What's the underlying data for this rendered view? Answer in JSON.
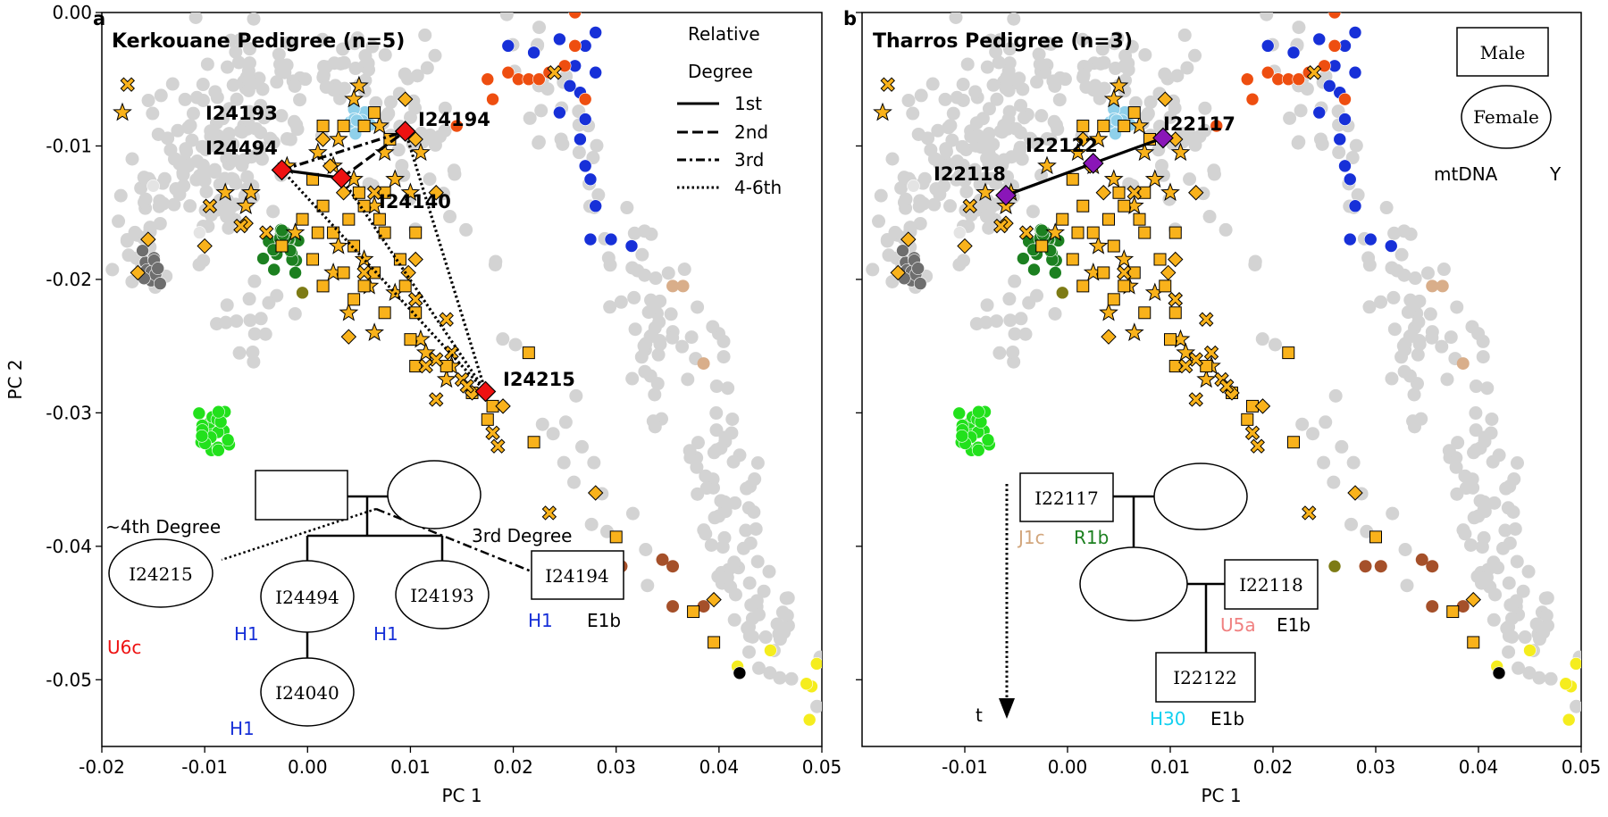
{
  "colors": {
    "background_points": "#d3d3d3",
    "marker_fill": "#f9b21b",
    "kerkouane_individuals": "#ee1111",
    "tharros_individuals": "#8a16b8",
    "blue": "#1730d8",
    "orange_red": "#ee4e10",
    "green_dark": "#1c8020",
    "green_bright": "#22e11c",
    "gray_dark": "#6e6e6e",
    "sky_blue": "#8fd0ea",
    "olive": "#7d7b15",
    "tan": "#d9ae8a",
    "brown": "#a5502a",
    "yellow": "#f5ed1e",
    "black": "#000000"
  },
  "chart_data": [
    {
      "type": "scatter",
      "panel_letter": "a",
      "title": "Kerkouane Pedigree (n=5)",
      "xlabel": "PC 1",
      "ylabel": "PC 2",
      "xlim": [
        -0.02,
        0.05
      ],
      "ylim": [
        -0.055,
        0.0
      ],
      "x_ticks": [
        "-0.02",
        "-0.01",
        "0.00",
        "0.01",
        "0.02",
        "0.03",
        "0.04",
        "0.05"
      ],
      "y_ticks": [
        "0.00",
        "-0.01",
        "-0.02",
        "-0.03",
        "-0.04",
        "-0.05"
      ],
      "legend": {
        "title_line1": "Relative",
        "title_line2": "Degree",
        "entries": [
          "1st",
          "2nd",
          "3rd",
          "4-6th"
        ]
      },
      "highlighted": [
        {
          "id": "I24193",
          "x": -0.0025,
          "y": -0.0118
        },
        {
          "id": "I24494",
          "x": -0.0025,
          "y": -0.0118
        },
        {
          "id": "I24194",
          "x": 0.0095,
          "y": -0.0089
        },
        {
          "id": "I24140",
          "x": 0.0033,
          "y": -0.0124
        },
        {
          "id": "I24215",
          "x": 0.0173,
          "y": -0.0284
        }
      ],
      "relations": [
        {
          "from": "I24494",
          "to": "I24140",
          "degree": "1st"
        },
        {
          "from": "I24140",
          "to": "I24194",
          "degree": "2nd"
        },
        {
          "from": "I24494",
          "to": "I24194",
          "degree": "3rd"
        },
        {
          "from": "I24494",
          "to": "I24215",
          "degree": "4-6th"
        },
        {
          "from": "I24140",
          "to": "I24215",
          "degree": "4-6th"
        },
        {
          "from": "I24194",
          "to": "I24215",
          "degree": "4-6th"
        }
      ]
    },
    {
      "type": "scatter",
      "panel_letter": "b",
      "title": "Tharros Pedigree (n=3)",
      "xlabel": "PC 1",
      "ylabel": "",
      "xlim": [
        -0.02,
        0.05
      ],
      "ylim": [
        -0.055,
        0.0
      ],
      "x_ticks": [
        "-0.01",
        "0.00",
        "0.01",
        "0.02",
        "0.03",
        "0.04",
        "0.05"
      ],
      "legend": {
        "male": "Male",
        "female": "Female",
        "mtdna": "mtDNA",
        "y": "Y"
      },
      "highlighted": [
        {
          "id": "I22118",
          "x": -0.006,
          "y": -0.0137
        },
        {
          "id": "I22122",
          "x": 0.0025,
          "y": -0.0113
        },
        {
          "id": "I22117",
          "x": 0.0093,
          "y": -0.0094
        }
      ],
      "relations": [
        {
          "from": "I22118",
          "to": "I22122",
          "degree": "1st"
        },
        {
          "from": "I22122",
          "to": "I22117",
          "degree": "1st"
        }
      ]
    }
  ],
  "pedigree_a": {
    "degree_4th": "~4th Degree",
    "degree_3rd": "3rd Degree",
    "nodes": {
      "I24215": {
        "label": "I24215",
        "mt": "U6c"
      },
      "I24494": {
        "label": "I24494",
        "mt": "H1"
      },
      "I24193": {
        "label": "I24193",
        "mt": "H1"
      },
      "I24194": {
        "label": "I24194",
        "mt": "H1",
        "y": "E1b"
      },
      "I24040": {
        "label": "I24040",
        "mt": "H1"
      }
    }
  },
  "pedigree_b": {
    "time_label": "t",
    "nodes": {
      "I22117": {
        "label": "I22117",
        "mt": "J1c",
        "y": "R1b"
      },
      "I22118": {
        "label": "I22118",
        "mt": "U5a",
        "y": "E1b"
      },
      "I22122": {
        "label": "I22122",
        "mt": "H30",
        "y": "E1b"
      }
    }
  }
}
